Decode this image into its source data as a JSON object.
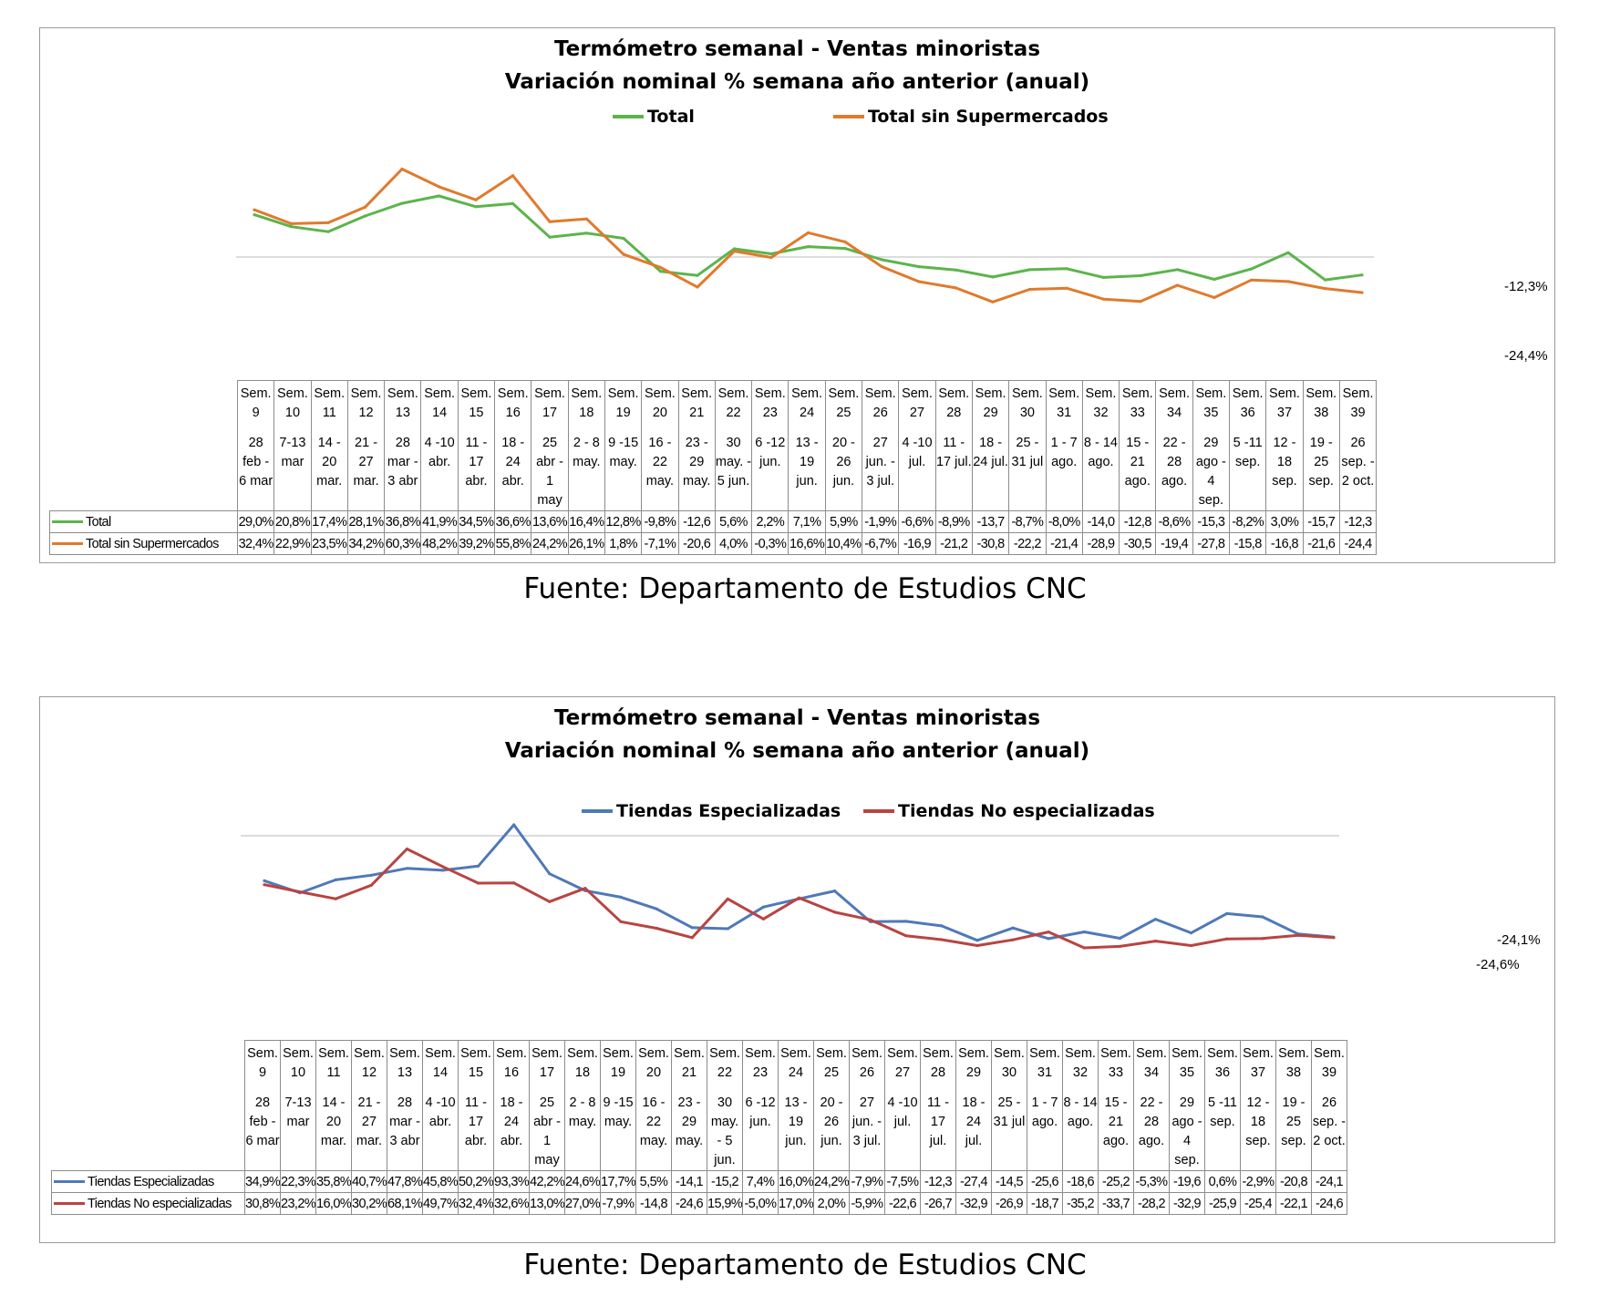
{
  "charts": [
    {
      "id": "c1",
      "title_line1": "Termómetro semanal - Ventas minoristas",
      "title_line2": "Variación nominal % semana año anterior (anual)",
      "end_labels": [
        "-12,3%",
        "-24,4%"
      ],
      "source": "Fuente: Departamento de Estudios CNC"
    },
    {
      "id": "c2",
      "title_line1": "Termómetro semanal - Ventas minoristas",
      "title_line2": "Variación nominal % semana año anterior (anual)",
      "end_labels": [
        "-24,1%",
        "-24,6%"
      ],
      "source": "Fuente: Departamento de Estudios CNC"
    }
  ],
  "chart_data": [
    {
      "type": "line",
      "title": "Termómetro semanal - Ventas minoristas / Variación nominal % semana año anterior (anual)",
      "categories": [
        "Sem. 9",
        "Sem. 10",
        "Sem. 11",
        "Sem. 12",
        "Sem. 13",
        "Sem. 14",
        "Sem. 15",
        "Sem. 16",
        "Sem. 17",
        "Sem. 18",
        "Sem. 19",
        "Sem. 20",
        "Sem. 21",
        "Sem. 22",
        "Sem. 23",
        "Sem. 24",
        "Sem. 25",
        "Sem. 26",
        "Sem. 27",
        "Sem. 28",
        "Sem. 29",
        "Sem. 30",
        "Sem. 31",
        "Sem. 32",
        "Sem. 33",
        "Sem. 34",
        "Sem. 35",
        "Sem. 36",
        "Sem. 37",
        "Sem. 38",
        "Sem. 39"
      ],
      "weeks": [
        "Sem. 9",
        "Sem. 10",
        "Sem. 11",
        "Sem. 12",
        "Sem. 13",
        "Sem. 14",
        "Sem. 15",
        "Sem. 16",
        "Sem. 17",
        "Sem. 18",
        "Sem. 19",
        "Sem. 20",
        "Sem. 21",
        "Sem. 22",
        "Sem. 23",
        "Sem. 24",
        "Sem. 25",
        "Sem. 26",
        "Sem. 27",
        "Sem. 28",
        "Sem. 29",
        "Sem. 30",
        "Sem. 31",
        "Sem. 32",
        "Sem. 33",
        "Sem. 34",
        "Sem. 35",
        "Sem. 36",
        "Sem. 37",
        "Sem. 38",
        "Sem. 39"
      ],
      "dates": [
        "28 feb - 6 mar",
        "7-13 mar",
        "14 - 20 mar.",
        "21 - 27 mar.",
        "28 mar - 3 abr",
        "4 -10 abr.",
        "11 - 17 abr.",
        "18 - 24 abr.",
        "25 abr - 1 may",
        "2 - 8 may.",
        "9 -15 may.",
        "16 - 22 may.",
        "23 - 29 may.",
        "30 may. - 5 jun.",
        "6 -12 jun.",
        "13 - 19 jun.",
        "20 - 26 jun.",
        "27 jun. - 3 jul.",
        "4 -10 jul.",
        "11 - 17 jul.",
        "18 - 24 jul.",
        "25 - 31 jul",
        "1 - 7 ago.",
        "8 - 14 ago.",
        "15 - 21 ago.",
        "22 - 28 ago.",
        "29 ago - 4 sep.",
        "5 -11 sep.",
        "12 - 18 sep.",
        "19 - 25 sep.",
        "26 sep. - 2 oct."
      ],
      "ylim": [
        -40,
        75
      ],
      "series": [
        {
          "name": "Total",
          "color": "#5cb44b",
          "values": [
            29.0,
            20.8,
            17.4,
            28.1,
            36.8,
            41.9,
            34.5,
            36.6,
            13.6,
            16.4,
            12.8,
            -9.8,
            -12.6,
            5.6,
            2.2,
            7.1,
            5.9,
            -1.9,
            -6.6,
            -8.9,
            -13.7,
            -8.7,
            -8.0,
            -14.0,
            -12.8,
            -8.6,
            -15.3,
            -8.2,
            3.0,
            -15.7,
            -12.3
          ],
          "labels": [
            "29,0%",
            "20,8%",
            "17,4%",
            "28,1%",
            "36,8%",
            "41,9%",
            "34,5%",
            "36,6%",
            "13,6%",
            "16,4%",
            "12,8%",
            "-9,8%",
            "-12,6",
            "5,6%",
            "2,2%",
            "7,1%",
            "5,9%",
            "-1,9%",
            "-6,6%",
            "-8,9%",
            "-13,7",
            "-8,7%",
            "-8,0%",
            "-14,0",
            "-12,8",
            "-8,6%",
            "-15,3",
            "-8,2%",
            "3,0%",
            "-15,7",
            "-12,3"
          ]
        },
        {
          "name": "Total sin Supermercados",
          "color": "#e07a2c",
          "values": [
            32.4,
            22.9,
            23.5,
            34.2,
            60.3,
            48.2,
            39.2,
            55.8,
            24.2,
            26.1,
            1.8,
            -7.1,
            -20.6,
            4.0,
            -0.3,
            16.6,
            10.4,
            -6.7,
            -16.9,
            -21.2,
            -30.8,
            -22.2,
            -21.4,
            -28.9,
            -30.5,
            -19.4,
            -27.8,
            -15.8,
            -16.8,
            -21.6,
            -24.4
          ],
          "labels": [
            "32,4%",
            "22,9%",
            "23,5%",
            "34,2%",
            "60,3%",
            "48,2%",
            "39,2%",
            "55,8%",
            "24,2%",
            "26,1%",
            "1,8%",
            "-7,1%",
            "-20,6",
            "4,0%",
            "-0,3%",
            "16,6%",
            "10,4%",
            "-6,7%",
            "-16,9",
            "-21,2",
            "-30,8",
            "-22,2",
            "-21,4",
            "-28,9",
            "-30,5",
            "-19,4",
            "-27,8",
            "-15,8",
            "-16,8",
            "-21,6",
            "-24,4"
          ]
        }
      ]
    },
    {
      "type": "line",
      "title": "Termómetro semanal - Ventas minoristas / Variación nominal % semana año anterior (anual)",
      "categories": [
        "Sem. 9",
        "Sem. 10",
        "Sem. 11",
        "Sem. 12",
        "Sem. 13",
        "Sem. 14",
        "Sem. 15",
        "Sem. 16",
        "Sem. 17",
        "Sem. 18",
        "Sem. 19",
        "Sem. 20",
        "Sem. 21",
        "Sem. 22",
        "Sem. 23",
        "Sem. 24",
        "Sem. 25",
        "Sem. 26",
        "Sem. 27",
        "Sem. 28",
        "Sem. 29",
        "Sem. 30",
        "Sem. 31",
        "Sem. 32",
        "Sem. 33",
        "Sem. 34",
        "Sem. 35",
        "Sem. 36",
        "Sem. 37",
        "Sem. 38",
        "Sem. 39"
      ],
      "weeks": [
        "Sem. 9",
        "Sem. 10",
        "Sem. 11",
        "Sem. 12",
        "Sem. 13",
        "Sem. 14",
        "Sem. 15",
        "Sem. 16",
        "Sem. 17",
        "Sem. 18",
        "Sem. 19",
        "Sem. 20",
        "Sem. 21",
        "Sem. 22",
        "Sem. 23",
        "Sem. 24",
        "Sem. 25",
        "Sem. 26",
        "Sem. 27",
        "Sem. 28",
        "Sem. 29",
        "Sem. 30",
        "Sem. 31",
        "Sem. 32",
        "Sem. 33",
        "Sem. 34",
        "Sem. 35",
        "Sem. 36",
        "Sem. 37",
        "Sem. 38",
        "Sem. 39"
      ],
      "dates": [
        "28 feb - 6 mar",
        "7-13 mar",
        "14 - 20 mar.",
        "21 - 27 mar.",
        "28 mar - 3 abr",
        "4 -10 abr.",
        "11 - 17 abr.",
        "18 - 24 abr.",
        "25 abr - 1 may",
        "2 - 8 may.",
        "9 -15 may.",
        "16 - 22 may.",
        "23 - 29 may.",
        "30 may. - 5 jun.",
        "6 -12 jun.",
        "13 - 19 jun.",
        "20 - 26 jun.",
        "27 jun. - 3 jul.",
        "4 -10 jul.",
        "11 - 17 jul.",
        "18 - 24 jul.",
        "25 - 31 jul",
        "1 - 7 ago.",
        "8 - 14 ago.",
        "15 - 21 ago.",
        "22 - 28 ago.",
        "29 ago - 4 sep.",
        "5 -11 sep.",
        "12 - 18 sep.",
        "19 - 25 sep.",
        "26 sep. - 2 oct."
      ],
      "ylim": [
        -40,
        100
      ],
      "series": [
        {
          "name": "Tiendas Especializadas",
          "color": "#4f79b8",
          "values": [
            34.9,
            22.3,
            35.8,
            40.7,
            47.8,
            45.8,
            50.2,
            93.3,
            42.2,
            24.6,
            17.7,
            5.5,
            -14.1,
            -15.2,
            7.4,
            16.0,
            24.2,
            -7.9,
            -7.5,
            -12.3,
            -27.4,
            -14.5,
            -25.6,
            -18.6,
            -25.2,
            -5.3,
            -19.6,
            0.6,
            -2.9,
            -20.8,
            -24.1
          ],
          "labels": [
            "34,9%",
            "22,3%",
            "35,8%",
            "40,7%",
            "47,8%",
            "45,8%",
            "50,2%",
            "93,3%",
            "42,2%",
            "24,6%",
            "17,7%",
            "5,5%",
            "-14,1",
            "-15,2",
            "7,4%",
            "16,0%",
            "24,2%",
            "-7,9%",
            "-7,5%",
            "-12,3",
            "-27,4",
            "-14,5",
            "-25,6",
            "-18,6",
            "-25,2",
            "-5,3%",
            "-19,6",
            "0,6%",
            "-2,9%",
            "-20,8",
            "-24,1"
          ]
        },
        {
          "name": "Tiendas No especializadas",
          "color": "#b84442",
          "values": [
            30.8,
            23.2,
            16.0,
            30.2,
            68.1,
            49.7,
            32.4,
            32.6,
            13.0,
            27.0,
            -7.9,
            -14.8,
            -24.6,
            15.9,
            -5.0,
            17.0,
            2.0,
            -5.9,
            -22.6,
            -26.7,
            -32.9,
            -26.9,
            -18.7,
            -35.2,
            -33.7,
            -28.2,
            -32.9,
            -25.9,
            -25.4,
            -22.1,
            -24.6
          ],
          "labels": [
            "30,8%",
            "23,2%",
            "16,0%",
            "30,2%",
            "68,1%",
            "49,7%",
            "32,4%",
            "32,6%",
            "13,0%",
            "27,0%",
            "-7,9%",
            "-14,8",
            "-24,6",
            "15,9%",
            "-5,0%",
            "17,0%",
            "2,0%",
            "-5,9%",
            "-22,6",
            "-26,7",
            "-32,9",
            "-26,9",
            "-18,7",
            "-35,2",
            "-33,7",
            "-28,2",
            "-32,9",
            "-25,9",
            "-25,4",
            "-22,1",
            "-24,6"
          ]
        }
      ]
    }
  ]
}
